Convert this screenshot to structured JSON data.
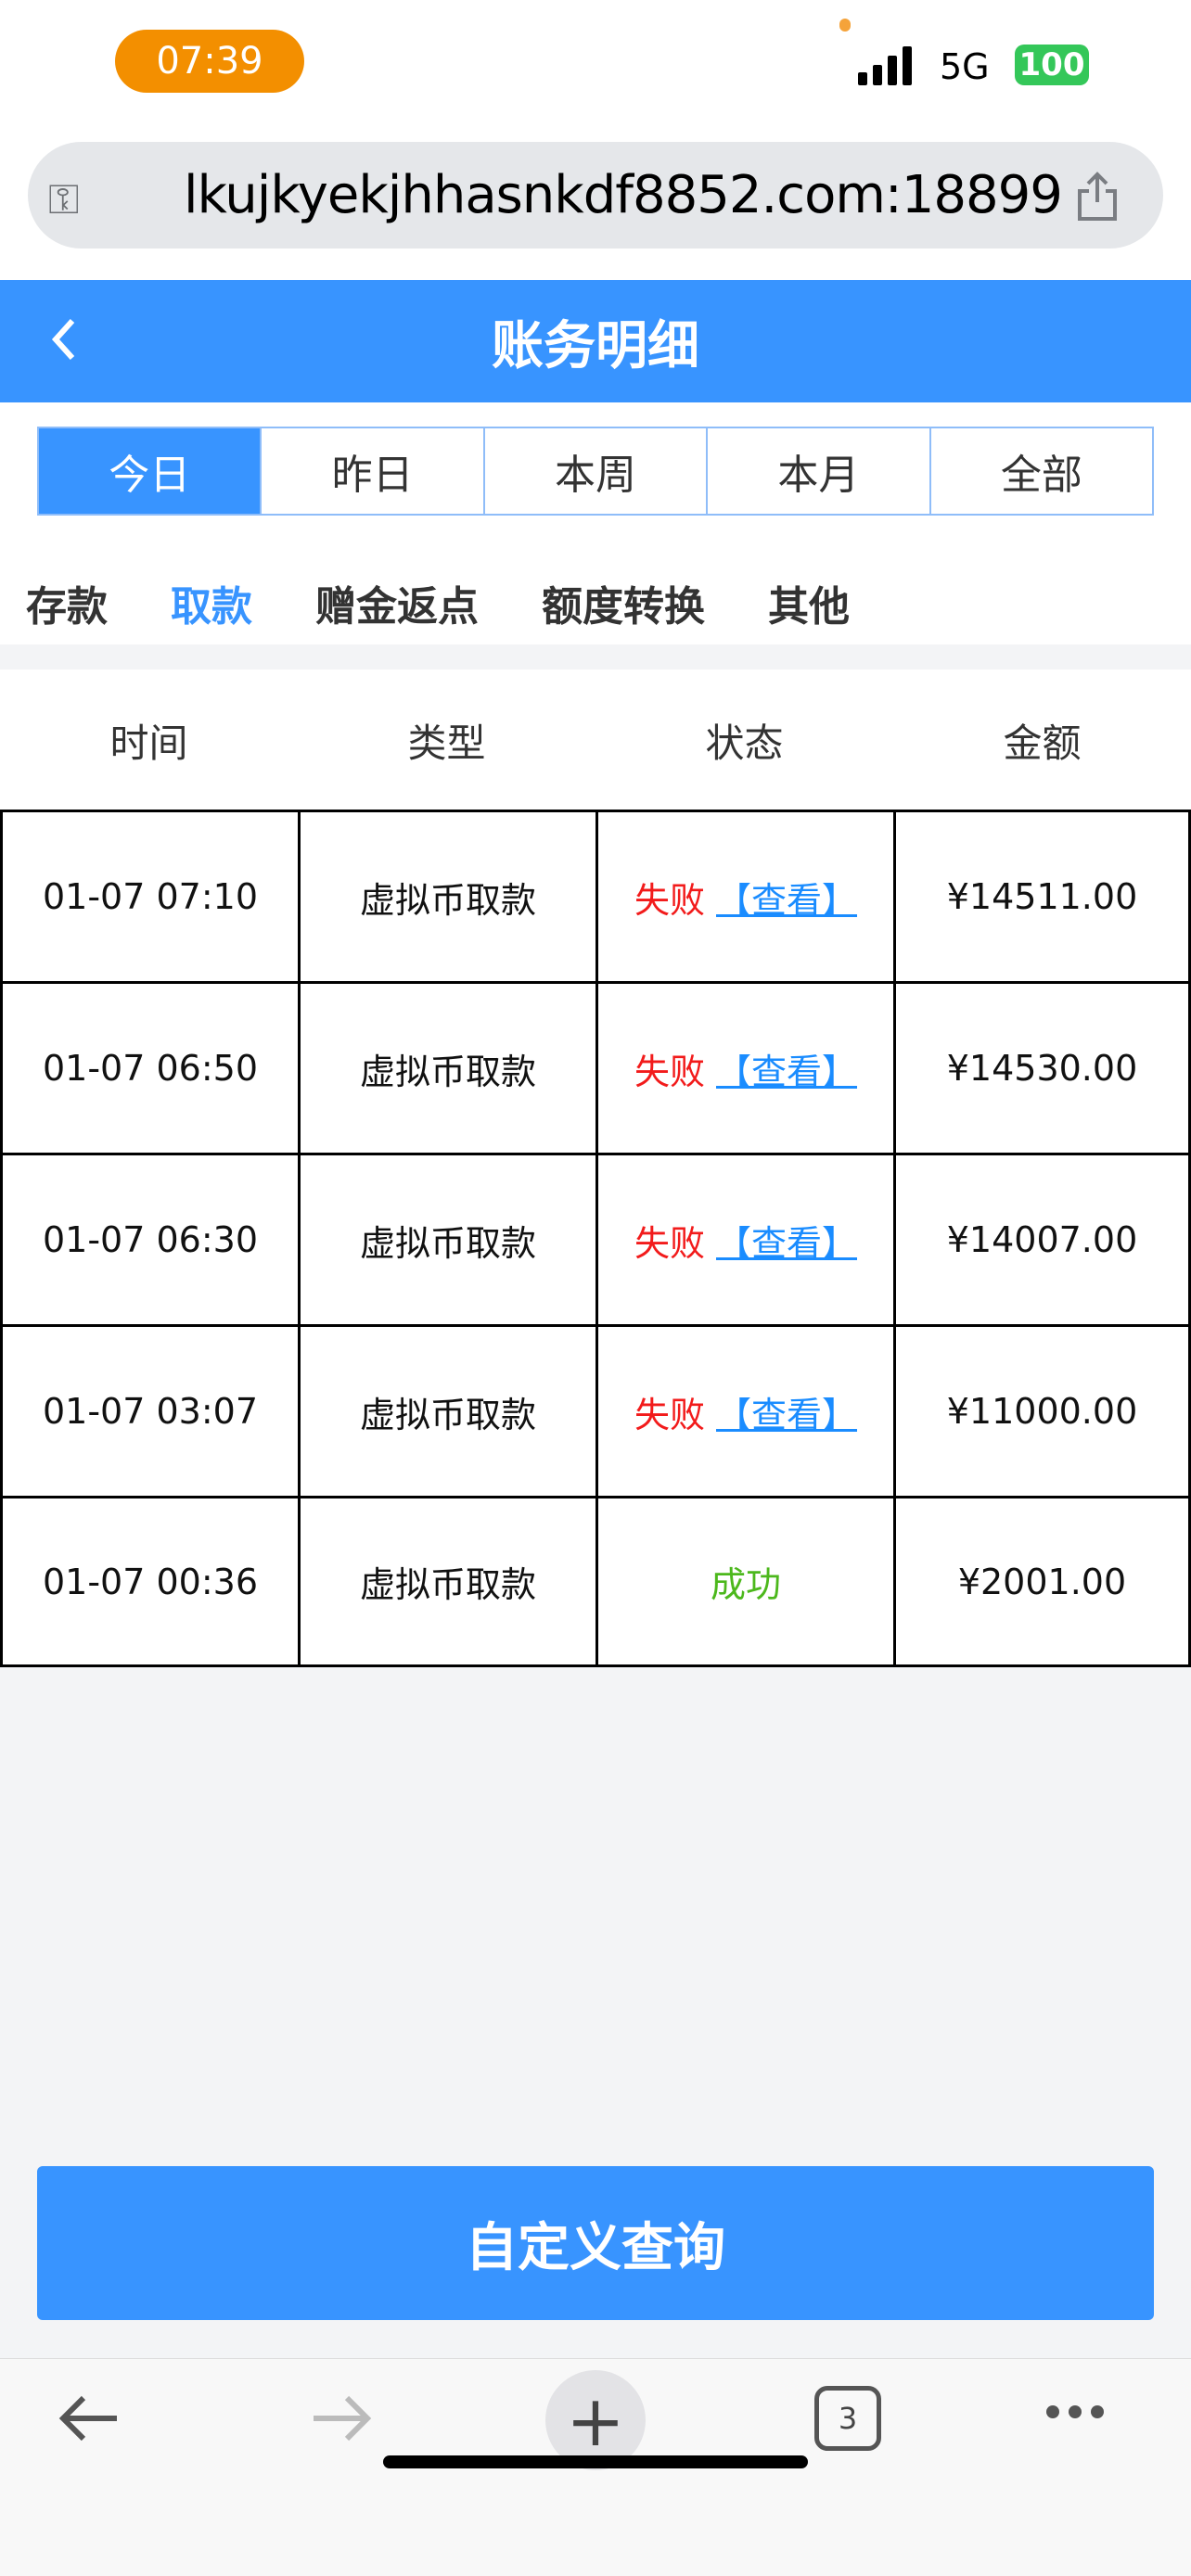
{
  "status": {
    "time": "07:39",
    "network": "5G",
    "battery": "100"
  },
  "browser": {
    "url": "lkujkyekjhhasnkdf8852.com:18899",
    "tab_count": "3"
  },
  "header": {
    "title": "账务明细"
  },
  "periods": [
    {
      "label": "今日",
      "active": true
    },
    {
      "label": "昨日"
    },
    {
      "label": "本周"
    },
    {
      "label": "本月"
    },
    {
      "label": "全部"
    }
  ],
  "categories": [
    {
      "label": "存款"
    },
    {
      "label": "取款",
      "active": true
    },
    {
      "label": "赠金返点"
    },
    {
      "label": "额度转换"
    },
    {
      "label": "其他"
    }
  ],
  "table": {
    "headers": [
      "时间",
      "类型",
      "状态",
      "金额"
    ],
    "rows": [
      {
        "time": "01-07 07:10",
        "type": "虚拟币取款",
        "status": "失败",
        "link": "【查看】",
        "amount": "¥14511.00"
      },
      {
        "time": "01-07 06:50",
        "type": "虚拟币取款",
        "status": "失败",
        "link": "【查看】",
        "amount": "¥14530.00"
      },
      {
        "time": "01-07 06:30",
        "type": "虚拟币取款",
        "status": "失败",
        "link": "【查看】",
        "amount": "¥14007.00"
      },
      {
        "time": "01-07 03:07",
        "type": "虚拟币取款",
        "status": "失败",
        "link": "【查看】",
        "amount": "¥11000.00"
      },
      {
        "time": "01-07 00:36",
        "type": "虚拟币取款",
        "status": "成功",
        "amount": "¥2001.00"
      }
    ]
  },
  "button": {
    "label": "自定义查询"
  },
  "colors": {
    "primary": "#3894ff",
    "fail": "#f21b1b",
    "success": "#4cb81c",
    "link": "#1a8cff"
  }
}
